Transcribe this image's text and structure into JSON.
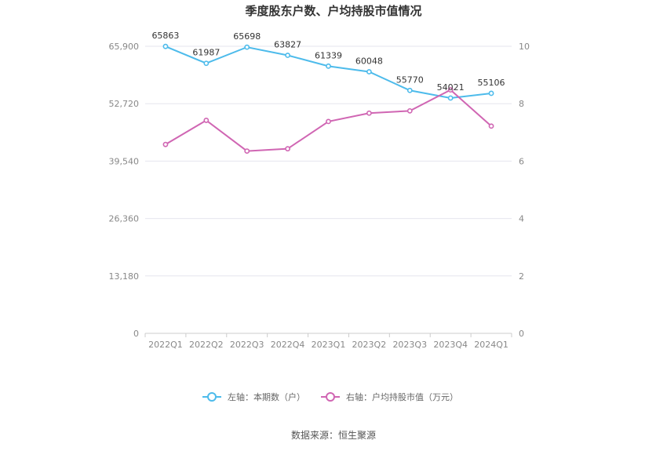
{
  "chart_data": {
    "type": "line",
    "title": "季度股东户数、户均持股市值情况",
    "categories": [
      "2022Q1",
      "2022Q2",
      "2022Q3",
      "2022Q4",
      "2023Q1",
      "2023Q2",
      "2023Q3",
      "2023Q4",
      "2024Q1"
    ],
    "left_axis": {
      "ticks": [
        "0",
        "13,180",
        "26,360",
        "39,540",
        "52,720",
        "65,900"
      ],
      "ylim": [
        0,
        65900
      ]
    },
    "right_axis": {
      "ticks": [
        "0",
        "2",
        "4",
        "6",
        "8",
        "10"
      ],
      "ylim": [
        0,
        10
      ]
    },
    "series": [
      {
        "name": "左轴：本期数（户）",
        "axis": "left",
        "color": "#4DBBEB",
        "values": [
          65863,
          61987,
          65698,
          63827,
          61339,
          60048,
          55770,
          54021,
          55106
        ],
        "labels": [
          "65863",
          "61987",
          "65698",
          "63827",
          "61339",
          "60048",
          "55770",
          "54021",
          "55106"
        ]
      },
      {
        "name": "右轴：户均持股市值（万元）",
        "axis": "right",
        "color": "#D066B3",
        "values": [
          6.58,
          7.42,
          6.35,
          6.43,
          7.38,
          7.67,
          7.75,
          8.48,
          7.22
        ]
      }
    ],
    "grid": true,
    "legend_position": "bottom"
  },
  "footer": {
    "source": "数据来源：恒生聚源"
  }
}
